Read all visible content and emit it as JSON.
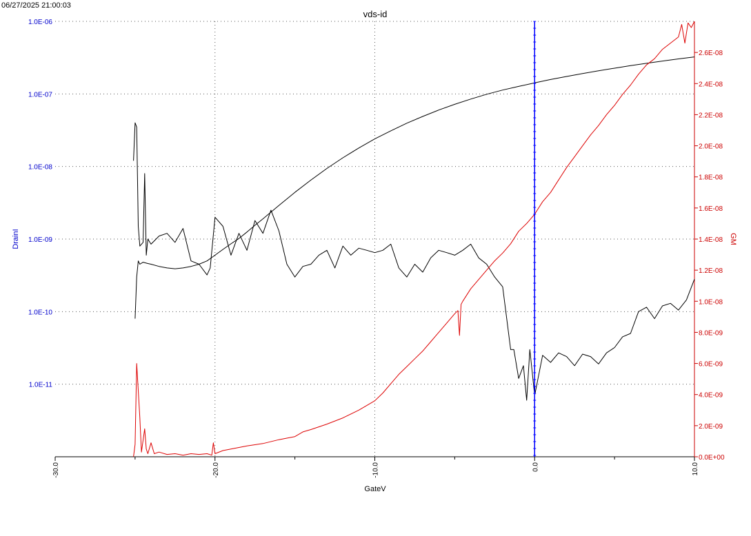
{
  "timestamp": "06/27/2025 21:00:03",
  "colors": {
    "left_axis": "#0000cc",
    "right_axis": "#cc0000",
    "cursor": "#0000ff",
    "drain_curve": "#000000",
    "gm_curve": "#dd0000",
    "grid": "#555555"
  },
  "chart_data": {
    "type": "line",
    "title": "vds-id",
    "xlabel": "GateV",
    "ylabel_left": "DrainI",
    "ylabel_right": "GM",
    "xlim": [
      -30,
      10
    ],
    "ylim_left": [
      1e-12,
      1e-06
    ],
    "yscale_left": "log",
    "ylim_right": [
      0,
      2.8e-08
    ],
    "yscale_right": "linear",
    "grid": true,
    "x_ticks": [
      -30,
      -20,
      -10,
      0,
      10
    ],
    "x_tick_labels": [
      "-30.0",
      "-20.0",
      "-10.0",
      "0.0",
      "10.0"
    ],
    "left_ticks": [
      1e-11,
      1e-10,
      1e-09,
      1e-08,
      1e-07,
      1e-06
    ],
    "left_tick_labels": [
      "1.0E-11",
      "1.0E-10",
      "1.0E-09",
      "1.0E-08",
      "1.0E-07",
      "1.0E-06"
    ],
    "right_ticks": [
      0,
      2e-09,
      4e-09,
      6e-09,
      8e-09,
      1e-08,
      1.2e-08,
      1.4e-08,
      1.6e-08,
      1.8e-08,
      2e-08,
      2.2e-08,
      2.4e-08,
      2.6e-08
    ],
    "right_tick_labels": [
      "0.0E+00",
      "2.0E-09",
      "4.0E-09",
      "6.0E-09",
      "8.0E-09",
      "1.0E-08",
      "1.2E-08",
      "1.4E-08",
      "1.6E-08",
      "1.8E-08",
      "2.0E-08",
      "2.2E-08",
      "2.4E-08",
      "2.6E-08"
    ],
    "cursor_x": 0.0,
    "series": [
      {
        "axis": "left",
        "color": "#000000",
        "x": [
          -25,
          -24.9,
          -24.8,
          -24.7,
          -24.5,
          -24.2,
          -24,
          -23.5,
          -23,
          -22.5,
          -22,
          -21.5,
          -21,
          -20.5,
          -20,
          -19.5,
          -19,
          -18.5,
          -18,
          -17.5,
          -17,
          -16.5,
          -16,
          -15,
          -14,
          -13,
          -12,
          -11,
          -10,
          -9,
          -8,
          -7,
          -6,
          -5,
          -4,
          -3,
          -2,
          -1,
          0,
          1,
          2,
          3,
          4,
          5,
          6,
          7,
          8,
          9,
          10
        ],
        "y": [
          8e-11,
          3e-10,
          5e-10,
          4.5e-10,
          4.8e-10,
          4.6e-10,
          4.5e-10,
          4.2e-10,
          4e-10,
          3.9e-10,
          4e-10,
          4.2e-10,
          4.5e-10,
          5e-10,
          6e-10,
          7.2e-10,
          8.6e-10,
          1.02e-09,
          1.25e-09,
          1.55e-09,
          1.9e-09,
          2.35e-09,
          2.9e-09,
          4.4e-09,
          6.5e-09,
          9.4e-09,
          1.32e-08,
          1.8e-08,
          2.4e-08,
          3.1e-08,
          3.95e-08,
          4.9e-08,
          6e-08,
          7.2e-08,
          8.5e-08,
          9.9e-08,
          1.13e-07,
          1.27e-07,
          1.42e-07,
          1.58e-07,
          1.74e-07,
          1.91e-07,
          2.08e-07,
          2.26e-07,
          2.45e-07,
          2.64e-07,
          2.84e-07,
          3.04e-07,
          3.24e-07
        ]
      },
      {
        "axis": "left",
        "color": "#000000",
        "x": [
          -25.1,
          -25,
          -24.9,
          -24.8,
          -24.7,
          -24.5,
          -24.4,
          -24.3,
          -24.2,
          -24,
          -23.5,
          -23,
          -22.5,
          -22,
          -21.5,
          -21,
          -20.5,
          -20.3,
          -20,
          -19.5,
          -19,
          -18.5,
          -18,
          -17.5,
          -17,
          -16.5,
          -16,
          -15.5,
          -15,
          -14.5,
          -14,
          -13.5,
          -13,
          -12.5,
          -12,
          -11.5,
          -11,
          -10.5,
          -10,
          -9.5,
          -9,
          -8.5,
          -8,
          -7.5,
          -7,
          -6.5,
          -6,
          -5.5,
          -5,
          -4.5,
          -4,
          -3.5,
          -3,
          -2.5,
          -2,
          -1.5,
          -1.3,
          -1,
          -0.7,
          -0.5,
          -0.3,
          0,
          0.5,
          1,
          1.5,
          2,
          2.5,
          3,
          3.5,
          4,
          4.5,
          5,
          5.5,
          6,
          6.5,
          7,
          7.5,
          8,
          8.5,
          9,
          9.5,
          10
        ],
        "y": [
          1.2e-08,
          4e-08,
          3.5e-08,
          1.5e-09,
          8e-10,
          9e-10,
          8e-09,
          6e-10,
          1e-09,
          8.5e-10,
          1.1e-09,
          1.2e-09,
          9e-10,
          1.4e-09,
          5e-10,
          4.5e-10,
          3.2e-10,
          4e-10,
          2e-09,
          1.5e-09,
          6e-10,
          1.2e-09,
          7e-10,
          1.8e-09,
          1.2e-09,
          2.5e-09,
          1.3e-09,
          4.5e-10,
          3e-10,
          4.2e-10,
          4.5e-10,
          6e-10,
          7e-10,
          4e-10,
          8e-10,
          6e-10,
          7.5e-10,
          7e-10,
          6.5e-10,
          7e-10,
          8.5e-10,
          4e-10,
          3e-10,
          4.5e-10,
          3.5e-10,
          5.5e-10,
          7e-10,
          6.5e-10,
          6e-10,
          7e-10,
          8.5e-10,
          5.5e-10,
          4.5e-10,
          3e-10,
          2.2e-10,
          3e-11,
          3e-11,
          1.2e-11,
          1.8e-11,
          6e-12,
          3e-11,
          7e-12,
          2.5e-11,
          2e-11,
          2.7e-11,
          2.4e-11,
          1.8e-11,
          2.6e-11,
          2.4e-11,
          1.9e-11,
          2.7e-11,
          3.2e-11,
          4.5e-11,
          5e-11,
          1e-10,
          1.15e-10,
          8e-11,
          1.2e-10,
          1.3e-10,
          1.05e-10,
          1.45e-10,
          2.8e-10
        ]
      },
      {
        "axis": "right",
        "color": "#dd0000",
        "x": [
          -25.1,
          -25,
          -24.9,
          -24.7,
          -24.6,
          -24.4,
          -24.3,
          -24.2,
          -24,
          -23.8,
          -23.5,
          -23,
          -22.5,
          -22,
          -21.5,
          -21,
          -20.5,
          -20.2,
          -20.1,
          -20,
          -19.5,
          -19,
          -18,
          -17,
          -16,
          -15,
          -14.5,
          -14,
          -13,
          -12,
          -11,
          -10,
          -9.5,
          -9,
          -8.5,
          -8,
          -7.5,
          -7,
          -6.5,
          -6,
          -5.5,
          -5,
          -4.8,
          -4.7,
          -4.6,
          -4.5,
          -4,
          -3.5,
          -3,
          -2.5,
          -2,
          -1.5,
          -1,
          -0.5,
          0,
          0.5,
          1,
          1.5,
          2,
          2.5,
          3,
          3.5,
          4,
          4.5,
          5,
          5.5,
          6,
          6.5,
          7,
          7.5,
          8,
          8.5,
          9,
          9.2,
          9.4,
          9.6,
          9.8,
          10
        ],
        "y": [
          0,
          8e-10,
          6e-09,
          2.5e-09,
          3e-10,
          1.8e-09,
          5e-10,
          2e-10,
          9e-10,
          2e-10,
          3e-10,
          1.5e-10,
          2e-10,
          1e-10,
          2e-10,
          1.5e-10,
          2e-10,
          1e-10,
          9e-10,
          2e-10,
          4e-10,
          5e-10,
          7e-10,
          8.5e-10,
          1.1e-09,
          1.3e-09,
          1.6e-09,
          1.75e-09,
          2.1e-09,
          2.5e-09,
          3e-09,
          3.6e-09,
          4.1e-09,
          4.7e-09,
          5.3e-09,
          5.8e-09,
          6.3e-09,
          6.8e-09,
          7.4e-09,
          8e-09,
          8.6e-09,
          9.2e-09,
          9.4e-09,
          7.8e-09,
          9.8e-09,
          1e-08,
          1.08e-08,
          1.14e-08,
          1.2e-08,
          1.26e-08,
          1.31e-08,
          1.37e-08,
          1.45e-08,
          1.5e-08,
          1.56e-08,
          1.64e-08,
          1.7e-08,
          1.78e-08,
          1.86e-08,
          1.93e-08,
          2e-08,
          2.07e-08,
          2.13e-08,
          2.2e-08,
          2.26e-08,
          2.33e-08,
          2.39e-08,
          2.46e-08,
          2.52e-08,
          2.56e-08,
          2.62e-08,
          2.66e-08,
          2.7e-08,
          2.78e-08,
          2.66e-08,
          2.79e-08,
          2.76e-08,
          2.8e-08
        ]
      }
    ]
  }
}
